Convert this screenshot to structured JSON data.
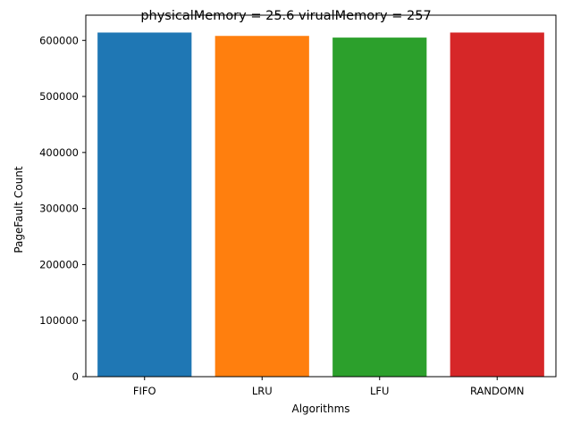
{
  "chart_data": {
    "type": "bar",
    "title": "physicalMemory = 25.6 virualMemory = 257",
    "xlabel": "Algorithms",
    "ylabel": "PageFault Count",
    "categories": [
      "FIFO",
      "LRU",
      "LFU",
      "RANDOMN"
    ],
    "values": [
      614000,
      608000,
      605000,
      614000
    ],
    "colors": [
      "#1f77b4",
      "#ff7f0e",
      "#2ca02c",
      "#d62728"
    ],
    "ylim": [
      0,
      645000
    ],
    "yticks": [
      0,
      100000,
      200000,
      300000,
      400000,
      500000,
      600000
    ],
    "ytick_labels": [
      "0",
      "100000",
      "200000",
      "300000",
      "400000",
      "500000",
      "600000"
    ],
    "grid": false,
    "legend": "none"
  }
}
